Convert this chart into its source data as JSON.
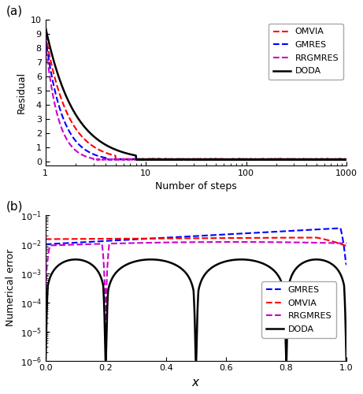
{
  "panel_a": {
    "xlabel": "Number of steps",
    "ylabel": "Residual",
    "xlim": [
      1,
      1000
    ],
    "ylim": [
      -0.3,
      10
    ],
    "yticks": [
      0,
      1,
      2,
      3,
      4,
      5,
      6,
      7,
      8,
      9,
      10
    ],
    "legend_order": [
      "OMVIA",
      "GMRES",
      "RRGMRES",
      "DODA"
    ],
    "lines": {
      "OMVIA": {
        "color": "#FF0000",
        "ls": "--",
        "lw": 1.5
      },
      "GMRES": {
        "color": "#0000FF",
        "ls": "--",
        "lw": 1.5
      },
      "RRGMRES": {
        "color": "#CC00CC",
        "ls": "--",
        "lw": 1.5
      },
      "DODA": {
        "color": "#000000",
        "ls": "-",
        "lw": 1.8
      }
    }
  },
  "panel_b": {
    "xlabel": "x",
    "ylabel": "Numerical error",
    "xlim": [
      0.0,
      1.0
    ],
    "ylim_lo": 1e-06,
    "ylim_hi": 0.1,
    "legend_order": [
      "GMRES",
      "OMVIA",
      "RRGMRES",
      "DODA"
    ],
    "lines": {
      "GMRES": {
        "color": "#0000FF",
        "ls": "--",
        "lw": 1.5
      },
      "OMVIA": {
        "color": "#FF0000",
        "ls": "--",
        "lw": 1.5
      },
      "RRGMRES": {
        "color": "#CC00CC",
        "ls": "--",
        "lw": 1.5
      },
      "DODA": {
        "color": "#000000",
        "ls": "-",
        "lw": 1.8
      }
    }
  }
}
